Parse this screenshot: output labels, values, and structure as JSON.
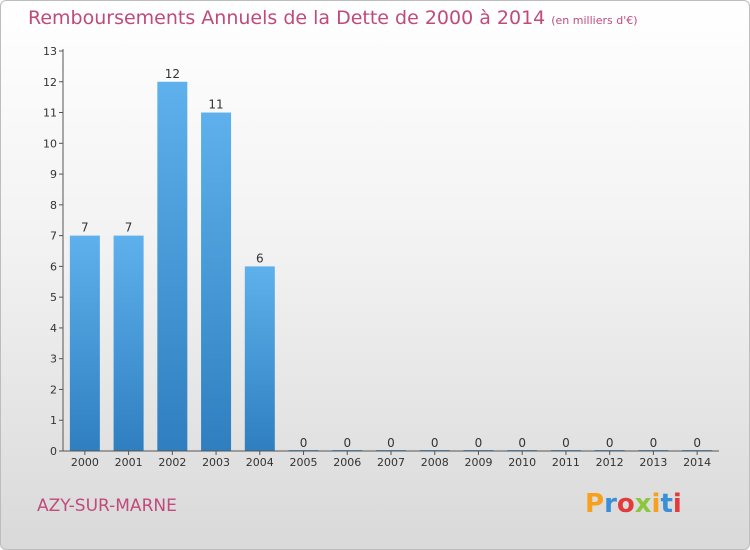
{
  "header": {
    "title": "Remboursements Annuels de la Dette de 2000 à 2014",
    "subtitle": "(en milliers d'€)"
  },
  "footer": {
    "commune": "AZY-SUR-MARNE",
    "logo": "Proxiti",
    "logo_colors": [
      "#f7a01e",
      "#3a8fd6",
      "#e23b3b",
      "#8cc63f",
      "#f7a01e",
      "#3a8fd6",
      "#e23b3b"
    ]
  },
  "chart_data": {
    "type": "bar",
    "categories": [
      "2000",
      "2001",
      "2002",
      "2003",
      "2004",
      "2005",
      "2006",
      "2007",
      "2008",
      "2009",
      "2010",
      "2011",
      "2012",
      "2013",
      "2014"
    ],
    "values": [
      7,
      7,
      12,
      11,
      6,
      0,
      0,
      0,
      0,
      0,
      0,
      0,
      0,
      0,
      0
    ],
    "data_labels": [
      "7",
      "7",
      "12",
      "11",
      "6",
      "0",
      "0",
      "0",
      "0",
      "0",
      "0",
      "0",
      "0",
      "0",
      "0"
    ],
    "yticks": [
      "0",
      "1",
      "2",
      "3",
      "4",
      "5",
      "6",
      "7",
      "8",
      "9",
      "10",
      "11",
      "12",
      "13"
    ],
    "ylim": [
      0,
      13
    ],
    "bar_color": "#4a9fdf",
    "grid": false
  }
}
